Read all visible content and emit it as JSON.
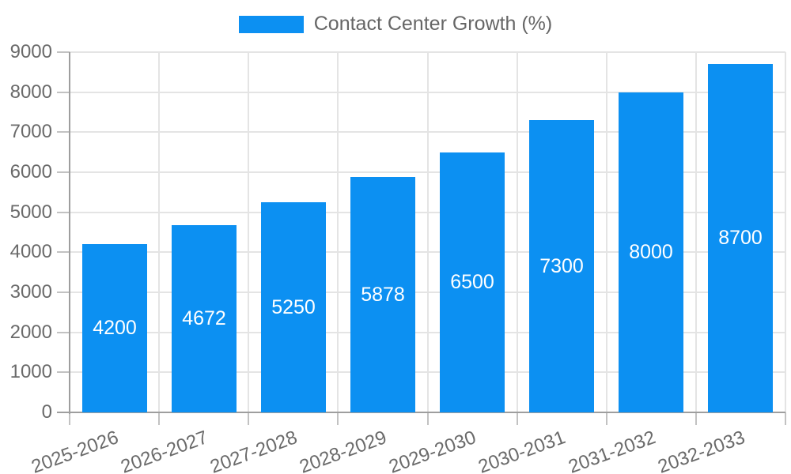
{
  "legend": {
    "label": "Contact Center Growth (%)"
  },
  "colors": {
    "bar": "#0C90F2",
    "grid": "#E4E4E4",
    "axis": "#9E9E9E",
    "tick_mark": "#C2C2C2",
    "tick_text": "#6A6A6A",
    "legend_text": "#666666",
    "bar_label_text": "#FFFFFF",
    "background": "#FFFFFF"
  },
  "chart_data": {
    "type": "bar",
    "title": "Contact Center Growth (%)",
    "categories": [
      "2025-2026",
      "2026-2027",
      "2027-2028",
      "2028-2029",
      "2029-2030",
      "2030-2031",
      "2031-2032",
      "2032-2033"
    ],
    "values": [
      4200,
      4672,
      5250,
      5878,
      6500,
      7300,
      8000,
      8700
    ],
    "xlabel": "",
    "ylabel": "",
    "ylim": [
      0,
      9000
    ],
    "ytick_step": 1000,
    "ytick_labels": [
      "0",
      "1000",
      "2000",
      "3000",
      "4000",
      "5000",
      "6000",
      "7000",
      "8000",
      "9000"
    ],
    "grid": true,
    "legend_position": "top",
    "bar_value_labels": [
      "4200",
      "4672",
      "5250",
      "5878",
      "6500",
      "7300",
      "8000",
      "8700"
    ],
    "bar_value_label_position": "center",
    "x_label_rotation_deg": -20
  }
}
